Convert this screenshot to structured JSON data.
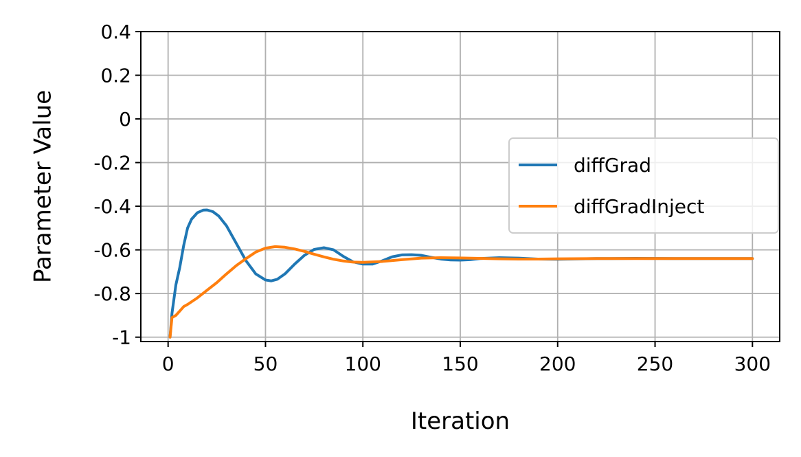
{
  "chart_data": {
    "type": "line",
    "title": "",
    "xlabel": "Iteration",
    "ylabel": "Parameter Value",
    "xlim": [
      -14,
      314
    ],
    "ylim": [
      -1.02,
      0.4
    ],
    "x_ticks": [
      0,
      50,
      100,
      150,
      200,
      250,
      300
    ],
    "x_tick_labels": [
      "0",
      "50",
      "100",
      "150",
      "200",
      "250",
      "300"
    ],
    "y_ticks": [
      -1,
      -0.8,
      -0.6,
      -0.4,
      -0.2,
      0,
      0.2,
      0.4
    ],
    "y_tick_labels": [
      "-1",
      "-0.8",
      "-0.6",
      "-0.4",
      "-0.2",
      "0",
      "0.2",
      "0.4"
    ],
    "grid": true,
    "legend_position": "center-right",
    "series": [
      {
        "name": "diffGrad",
        "color": "#1f77b4",
        "x": [
          1,
          2,
          4,
          6,
          8,
          10,
          12,
          15,
          18,
          20,
          23,
          26,
          30,
          35,
          40,
          45,
          50,
          53,
          56,
          60,
          65,
          70,
          75,
          80,
          85,
          90,
          95,
          100,
          105,
          110,
          115,
          120,
          125,
          130,
          135,
          140,
          145,
          150,
          155,
          160,
          170,
          180,
          190,
          200,
          220,
          240,
          260,
          280,
          300
        ],
        "y": [
          -1.0,
          -0.89,
          -0.76,
          -0.68,
          -0.58,
          -0.5,
          -0.46,
          -0.43,
          -0.418,
          -0.417,
          -0.425,
          -0.445,
          -0.49,
          -0.57,
          -0.65,
          -0.71,
          -0.738,
          -0.742,
          -0.735,
          -0.71,
          -0.665,
          -0.625,
          -0.598,
          -0.59,
          -0.6,
          -0.63,
          -0.655,
          -0.665,
          -0.665,
          -0.65,
          -0.632,
          -0.623,
          -0.622,
          -0.625,
          -0.634,
          -0.642,
          -0.646,
          -0.647,
          -0.645,
          -0.64,
          -0.636,
          -0.638,
          -0.642,
          -0.643,
          -0.64,
          -0.639,
          -0.64,
          -0.64,
          -0.64
        ]
      },
      {
        "name": "diffGradInject",
        "color": "#ff7f0e",
        "x": [
          1,
          2,
          3,
          4,
          6,
          8,
          10,
          15,
          20,
          25,
          30,
          35,
          40,
          45,
          50,
          55,
          60,
          65,
          70,
          75,
          80,
          85,
          90,
          95,
          100,
          110,
          120,
          130,
          140,
          150,
          160,
          170,
          180,
          190,
          200,
          220,
          240,
          260,
          280,
          300
        ],
        "y": [
          -1.0,
          -0.91,
          -0.905,
          -0.9,
          -0.88,
          -0.86,
          -0.85,
          -0.82,
          -0.785,
          -0.75,
          -0.71,
          -0.672,
          -0.64,
          -0.61,
          -0.592,
          -0.585,
          -0.588,
          -0.596,
          -0.607,
          -0.62,
          -0.632,
          -0.643,
          -0.651,
          -0.656,
          -0.657,
          -0.653,
          -0.645,
          -0.638,
          -0.636,
          -0.637,
          -0.639,
          -0.641,
          -0.642,
          -0.642,
          -0.641,
          -0.64,
          -0.64,
          -0.64,
          -0.64,
          -0.64
        ]
      }
    ]
  }
}
